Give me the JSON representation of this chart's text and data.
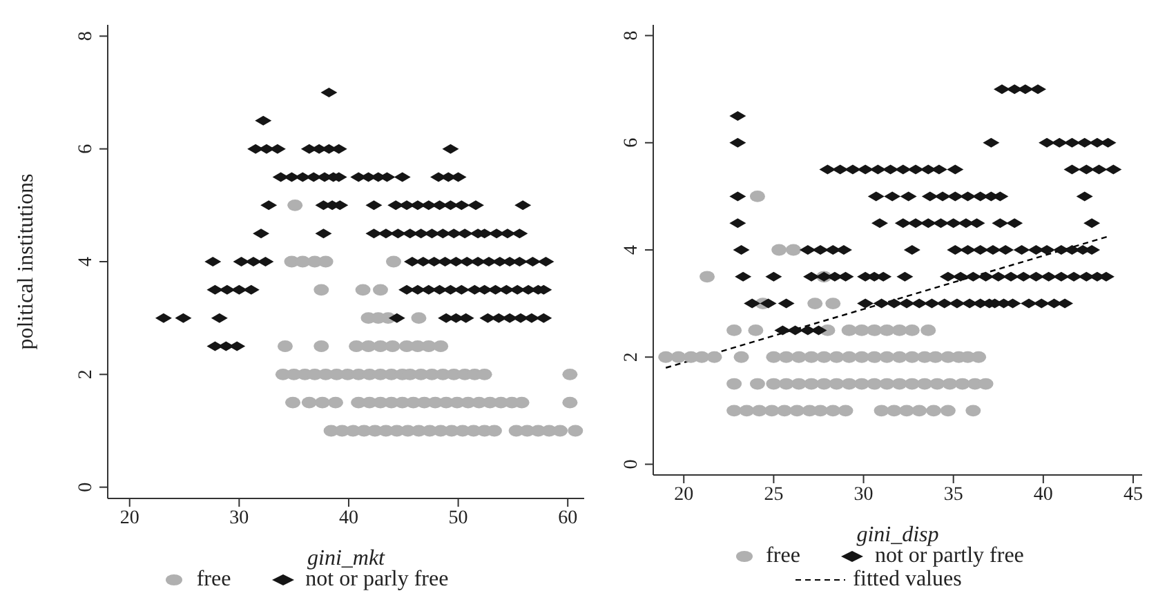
{
  "chart_data": [
    {
      "type": "scatter",
      "xlabel": "gini_mkt",
      "ylabel": "political institutions",
      "xlim": [
        18,
        61.5
      ],
      "xticks": [
        20,
        30,
        40,
        50,
        60
      ],
      "ylim": [
        -0.2,
        8.2
      ],
      "yticks": [
        0,
        2,
        4,
        6,
        8
      ],
      "legend": "bottom",
      "series": [
        {
          "name": "free",
          "color": "#b0b0b0",
          "marker": "circle",
          "x": [
            35.1,
            34.8,
            35.8,
            36.9,
            37.9,
            44.1,
            37.5,
            41.3,
            42.9,
            41.8,
            42.7,
            43.6,
            46.4,
            34.2,
            37.5,
            40.7,
            41.8,
            42.9,
            44,
            45.3,
            46.3,
            47.3,
            48.4,
            34,
            35,
            36,
            36.9,
            37.9,
            38.9,
            39.9,
            40.9,
            41.9,
            42.9,
            43.9,
            44.9,
            45.6,
            46.6,
            47.6,
            48.6,
            49.6,
            50.6,
            51.5,
            52.4,
            60.2,
            34.9,
            36.4,
            37.6,
            38.8,
            40.9,
            41.9,
            42.9,
            43.9,
            44.9,
            45.9,
            46.9,
            47.9,
            48.9,
            49.9,
            50.9,
            51.9,
            52.9,
            53.9,
            54.9,
            55.8,
            60.2,
            38.4,
            39.4,
            40.4,
            41.4,
            42.4,
            43.4,
            44.4,
            45.4,
            46.4,
            47.4,
            48.4,
            49.4,
            50.4,
            51.4,
            52.4,
            53.3,
            55.3,
            56.3,
            57.3,
            58.3,
            59.3,
            60.7
          ],
          "values": [
            5,
            4,
            4,
            4,
            4,
            4,
            3.5,
            3.5,
            3.5,
            3,
            3,
            3,
            3,
            2.5,
            2.5,
            2.5,
            2.5,
            2.5,
            2.5,
            2.5,
            2.5,
            2.5,
            2.5,
            2,
            2,
            2,
            2,
            2,
            2,
            2,
            2,
            2,
            2,
            2,
            2,
            2,
            2,
            2,
            2,
            2,
            2,
            2,
            2,
            2,
            1.5,
            1.5,
            1.5,
            1.5,
            1.5,
            1.5,
            1.5,
            1.5,
            1.5,
            1.5,
            1.5,
            1.5,
            1.5,
            1.5,
            1.5,
            1.5,
            1.5,
            1.5,
            1.5,
            1.5,
            1.5,
            1,
            1,
            1,
            1,
            1,
            1,
            1,
            1,
            1,
            1,
            1,
            1,
            1,
            1,
            1,
            1,
            1,
            1,
            1,
            1,
            1,
            1
          ]
        },
        {
          "name": "not or parly free",
          "color": "#151515",
          "marker": "diamond",
          "x": [
            38.2,
            32.2,
            31.5,
            32.5,
            33.5,
            36.4,
            37.3,
            38.2,
            39.1,
            49.3,
            33.8,
            34.8,
            35.8,
            36.8,
            37.8,
            38.6,
            39.1,
            40.9,
            41.8,
            42.7,
            43.5,
            44.9,
            48.2,
            49.1,
            50,
            32.7,
            37.7,
            38.5,
            39.2,
            42.3,
            44.3,
            45.3,
            46.3,
            47.3,
            48.3,
            49.3,
            50.3,
            51.6,
            55.9,
            32,
            37.7,
            42.3,
            43.4,
            44.5,
            45.6,
            46.6,
            47.6,
            48.6,
            49.6,
            50.6,
            51.8,
            52.4,
            53.5,
            54.5,
            55.6,
            27.6,
            30.2,
            31.3,
            32.4,
            45.8,
            46.8,
            47.8,
            48.8,
            49.8,
            50.8,
            51.8,
            52.8,
            53.8,
            54.7,
            55.6,
            56.8,
            58,
            27.8,
            28.9,
            30,
            31.1,
            45.3,
            46.3,
            47.3,
            48.3,
            49.3,
            50.3,
            51.5,
            52.4,
            53.4,
            54.4,
            55.4,
            56.4,
            57.3,
            57.8,
            23.1,
            24.9,
            28.2,
            44.4,
            48.9,
            49.8,
            50.7,
            52.7,
            53.7,
            54.7,
            55.7,
            56.7,
            57.8,
            27.8,
            28.8,
            29.8
          ],
          "values": [
            7,
            6.5,
            6,
            6,
            6,
            6,
            6,
            6,
            6,
            6,
            5.5,
            5.5,
            5.5,
            5.5,
            5.5,
            5.5,
            5.5,
            5.5,
            5.5,
            5.5,
            5.5,
            5.5,
            5.5,
            5.5,
            5.5,
            5,
            5,
            5,
            5,
            5,
            5,
            5,
            5,
            5,
            5,
            5,
            5,
            5,
            5,
            4.5,
            4.5,
            4.5,
            4.5,
            4.5,
            4.5,
            4.5,
            4.5,
            4.5,
            4.5,
            4.5,
            4.5,
            4.5,
            4.5,
            4.5,
            4.5,
            4,
            4,
            4,
            4,
            4,
            4,
            4,
            4,
            4,
            4,
            4,
            4,
            4,
            4,
            4,
            4,
            4,
            3.5,
            3.5,
            3.5,
            3.5,
            3.5,
            3.5,
            3.5,
            3.5,
            3.5,
            3.5,
            3.5,
            3.5,
            3.5,
            3.5,
            3.5,
            3.5,
            3.5,
            3.5,
            3,
            3,
            3,
            3,
            3,
            3,
            3,
            3,
            3,
            3,
            3,
            3,
            3,
            2.5,
            2.5,
            2.5
          ]
        }
      ]
    },
    {
      "type": "scatter",
      "xlabel": "gini_disp",
      "xlim": [
        18.3,
        45.5
      ],
      "xticks": [
        20,
        25,
        30,
        35,
        40,
        45
      ],
      "ylim": [
        -0.2,
        8.2
      ],
      "yticks": [
        0,
        2,
        4,
        6,
        8
      ],
      "legend": "bottom",
      "series": [
        {
          "name": "free",
          "color": "#b0b0b0",
          "marker": "circle",
          "x": [
            24.1,
            25.3,
            26.1,
            21.3,
            27.8,
            24.4,
            27.3,
            28.3,
            22.8,
            24,
            28,
            29.2,
            29.9,
            30.6,
            31.3,
            32,
            32.7,
            33.6,
            19,
            19.7,
            20.4,
            21,
            21.7,
            23.2,
            25,
            25.7,
            26.4,
            27.1,
            27.8,
            28.5,
            29.2,
            29.9,
            30.6,
            31.3,
            32,
            32.7,
            33.4,
            34,
            34.7,
            35.3,
            35.8,
            36.4,
            22.8,
            24.1,
            25,
            25.7,
            26.4,
            27.1,
            27.8,
            28.5,
            29.2,
            29.9,
            30.6,
            31.3,
            32,
            32.7,
            33.4,
            34.1,
            34.8,
            35.5,
            36.2,
            36.8,
            22.8,
            23.5,
            24.2,
            24.9,
            25.6,
            26.3,
            27,
            27.6,
            28.3,
            29,
            31,
            31.7,
            32.4,
            33.1,
            33.9,
            34.7,
            36.1
          ],
          "values": [
            5,
            4,
            4,
            3.5,
            3.5,
            3,
            3,
            3,
            2.5,
            2.5,
            2.5,
            2.5,
            2.5,
            2.5,
            2.5,
            2.5,
            2.5,
            2.5,
            2,
            2,
            2,
            2,
            2,
            2,
            2,
            2,
            2,
            2,
            2,
            2,
            2,
            2,
            2,
            2,
            2,
            2,
            2,
            2,
            2,
            2,
            2,
            2,
            1.5,
            1.5,
            1.5,
            1.5,
            1.5,
            1.5,
            1.5,
            1.5,
            1.5,
            1.5,
            1.5,
            1.5,
            1.5,
            1.5,
            1.5,
            1.5,
            1.5,
            1.5,
            1.5,
            1.5,
            1,
            1,
            1,
            1,
            1,
            1,
            1,
            1,
            1,
            1,
            1,
            1,
            1,
            1,
            1,
            1,
            1
          ]
        },
        {
          "name": "not or partly free",
          "color": "#151515",
          "marker": "diamond",
          "x": [
            37.7,
            38.4,
            39,
            39.7,
            23,
            23,
            37.1,
            40.2,
            40.9,
            41.6,
            42.3,
            43,
            43.6,
            28,
            28.7,
            29.4,
            30.1,
            30.8,
            31.5,
            32.2,
            32.9,
            33.6,
            34.2,
            35.1,
            41.6,
            42.4,
            43.1,
            43.9,
            23,
            30.7,
            31.6,
            32.5,
            33.7,
            34.4,
            35.1,
            35.8,
            36.5,
            37.1,
            37.6,
            42.3,
            23,
            30.9,
            32.2,
            32.9,
            33.6,
            34.3,
            35,
            35.7,
            36.3,
            37.6,
            38.4,
            42.7,
            23.2,
            26.9,
            27.6,
            28.3,
            28.9,
            32.7,
            35.1,
            35.8,
            36.5,
            37.2,
            37.9,
            38.8,
            39.6,
            40.2,
            41,
            41.6,
            42.2,
            42.7,
            23.3,
            25,
            27.1,
            27.8,
            28.4,
            29,
            30.1,
            30.6,
            31.1,
            32.3,
            34.7,
            35.4,
            36.1,
            36.8,
            37.5,
            38.2,
            38.9,
            39.6,
            40.3,
            41,
            41.7,
            42.4,
            43,
            43.5,
            23.8,
            24.7,
            25.7,
            30.1,
            31,
            31.7,
            32.4,
            33.1,
            33.8,
            34.5,
            35.2,
            35.9,
            36.5,
            37,
            37.3,
            37.8,
            38.3,
            39.2,
            39.9,
            40.6,
            41.2,
            25.5,
            26.2,
            26.9,
            27.5
          ],
          "values": [
            7,
            7,
            7,
            7,
            6.5,
            6,
            6,
            6,
            6,
            6,
            6,
            6,
            6,
            5.5,
            5.5,
            5.5,
            5.5,
            5.5,
            5.5,
            5.5,
            5.5,
            5.5,
            5.5,
            5.5,
            5.5,
            5.5,
            5.5,
            5.5,
            5,
            5,
            5,
            5,
            5,
            5,
            5,
            5,
            5,
            5,
            5,
            5,
            4.5,
            4.5,
            4.5,
            4.5,
            4.5,
            4.5,
            4.5,
            4.5,
            4.5,
            4.5,
            4.5,
            4.5,
            4,
            4,
            4,
            4,
            4,
            4,
            4,
            4,
            4,
            4,
            4,
            4,
            4,
            4,
            4,
            4,
            4,
            4,
            3.5,
            3.5,
            3.5,
            3.5,
            3.5,
            3.5,
            3.5,
            3.5,
            3.5,
            3.5,
            3.5,
            3.5,
            3.5,
            3.5,
            3.5,
            3.5,
            3.5,
            3.5,
            3.5,
            3.5,
            3.5,
            3.5,
            3.5,
            3.5,
            3,
            3,
            3,
            3,
            3,
            3,
            3,
            3,
            3,
            3,
            3,
            3,
            3,
            3,
            3,
            3,
            3,
            3,
            3,
            3,
            3,
            2.5,
            2.5,
            2.5,
            2.5
          ]
        },
        {
          "name": "fitted values",
          "type": "line",
          "color": "#000000",
          "line_style": "dashed",
          "marker": "none",
          "x": [
            19,
            43.6
          ],
          "values": [
            1.8,
            4.25
          ]
        }
      ]
    }
  ]
}
